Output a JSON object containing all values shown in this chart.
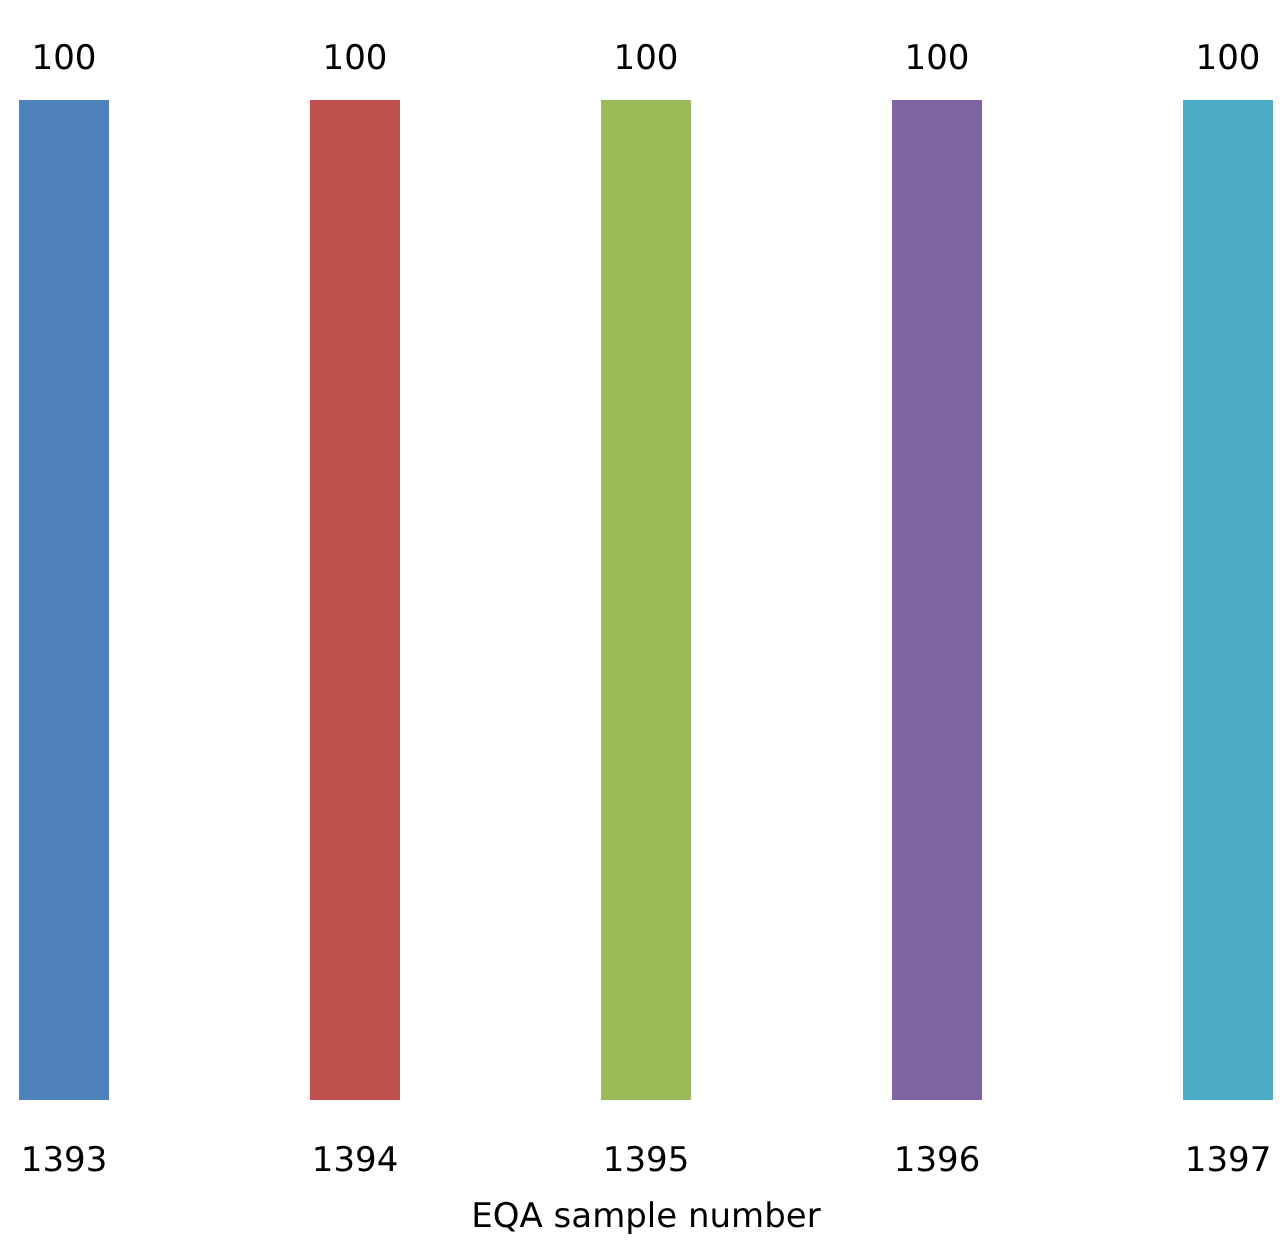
{
  "chart_data": {
    "type": "bar",
    "xlabel": "EQA sample number",
    "categories": [
      "1393",
      "1394",
      "1395",
      "1396",
      "1397"
    ],
    "values": [
      100,
      100,
      100,
      100,
      100
    ],
    "colors": [
      "#4f81bd",
      "#c0504d",
      "#9bbb59",
      "#8064a2",
      "#4bacc6"
    ],
    "data_labels": true
  }
}
